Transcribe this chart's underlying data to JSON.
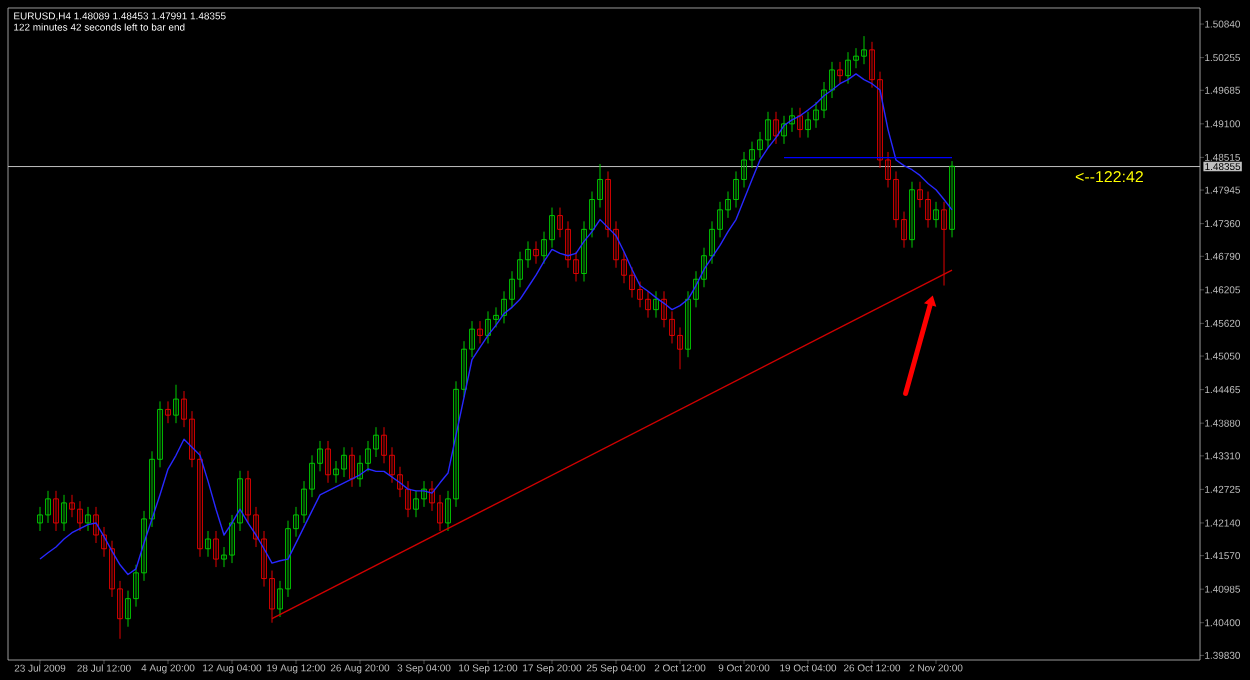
{
  "chart_data": {
    "type": "candlestick",
    "annotations": [
      "EURUSD,H4  1.48089 1.48453 1.47991 1.48355",
      "122 minutes 42 seconds left to bar end",
      {
        "text": "<--122:42",
        "y": 1.48355
      }
    ],
    "categories": [
      "23 Jul 2009",
      null,
      null,
      null,
      null,
      null,
      null,
      null,
      "28 Jul 12:00",
      null,
      null,
      null,
      null,
      null,
      null,
      null,
      "4 Aug 20:00",
      null,
      null,
      null,
      null,
      null,
      null,
      null,
      "12 Aug 04:00",
      null,
      null,
      null,
      null,
      null,
      null,
      null,
      "19 Aug 12:00",
      null,
      null,
      null,
      null,
      null,
      null,
      null,
      "26 Aug 20:00",
      null,
      null,
      null,
      null,
      null,
      null,
      null,
      "3 Sep 04:00",
      null,
      null,
      null,
      null,
      null,
      null,
      null,
      "10 Sep 12:00",
      null,
      null,
      null,
      null,
      null,
      null,
      null,
      "17 Sep 20:00",
      null,
      null,
      null,
      null,
      null,
      null,
      null,
      "25 Sep 04:00",
      null,
      null,
      null,
      null,
      null,
      null,
      null,
      "2 Oct 12:00",
      null,
      null,
      null,
      null,
      null,
      null,
      null,
      "9 Oct 20:00",
      null,
      null,
      null,
      null,
      null,
      null,
      null,
      "19 Oct 04:00",
      null,
      null,
      null,
      null,
      null,
      null,
      null,
      "26 Oct 12:00",
      null,
      null,
      null,
      null,
      null,
      null,
      null,
      "2 Nov 20:00",
      null,
      null
    ],
    "ohlc": [
      [
        1.4214,
        1.4242,
        1.42,
        1.4228
      ],
      [
        1.4228,
        1.427,
        1.4214,
        1.4256
      ],
      [
        1.4256,
        1.427,
        1.42,
        1.4214
      ],
      [
        1.4214,
        1.4263,
        1.42,
        1.4249
      ],
      [
        1.4249,
        1.4263,
        1.4224,
        1.4238
      ],
      [
        1.4238,
        1.4252,
        1.42,
        1.4214
      ],
      [
        1.4214,
        1.4242,
        1.42,
        1.4228
      ],
      [
        1.4228,
        1.4242,
        1.4179,
        1.4193
      ],
      [
        1.4193,
        1.4207,
        1.4155,
        1.4169
      ],
      [
        1.4169,
        1.4183,
        1.4085,
        1.4099
      ],
      [
        1.4099,
        1.4113,
        1.4012,
        1.4047
      ],
      [
        1.4047,
        1.4096,
        1.4033,
        1.4082
      ],
      [
        1.4082,
        1.4141,
        1.4068,
        1.4127
      ],
      [
        1.4127,
        1.4235,
        1.4113,
        1.4221
      ],
      [
        1.4221,
        1.4339,
        1.4207,
        1.4325
      ],
      [
        1.4325,
        1.4426,
        1.4311,
        1.4412
      ],
      [
        1.4412,
        1.4426,
        1.4388,
        1.4402
      ],
      [
        1.4402,
        1.4455,
        1.4388,
        1.443
      ],
      [
        1.443,
        1.4444,
        1.4381,
        1.4395
      ],
      [
        1.4395,
        1.4409,
        1.4311,
        1.4325
      ],
      [
        1.4325,
        1.4339,
        1.4155,
        1.4169
      ],
      [
        1.4169,
        1.42,
        1.4155,
        1.4186
      ],
      [
        1.4186,
        1.42,
        1.4137,
        1.4151
      ],
      [
        1.4151,
        1.4172,
        1.4137,
        1.4158
      ],
      [
        1.4158,
        1.4228,
        1.4144,
        1.4214
      ],
      [
        1.4214,
        1.4305,
        1.42,
        1.4291
      ],
      [
        1.4291,
        1.4305,
        1.4214,
        1.4228
      ],
      [
        1.4228,
        1.4242,
        1.4172,
        1.4186
      ],
      [
        1.4186,
        1.42,
        1.4103,
        1.4117
      ],
      [
        1.4117,
        1.4131,
        1.404,
        1.4064
      ],
      [
        1.4064,
        1.4113,
        1.405,
        1.4099
      ],
      [
        1.4099,
        1.4218,
        1.4085,
        1.4204
      ],
      [
        1.4204,
        1.4242,
        1.419,
        1.4228
      ],
      [
        1.4228,
        1.4287,
        1.4214,
        1.4273
      ],
      [
        1.4273,
        1.4332,
        1.4259,
        1.4318
      ],
      [
        1.4318,
        1.4357,
        1.4304,
        1.4343
      ],
      [
        1.4343,
        1.4357,
        1.4284,
        1.4298
      ],
      [
        1.4298,
        1.4322,
        1.4284,
        1.4308
      ],
      [
        1.4308,
        1.4346,
        1.4294,
        1.4332
      ],
      [
        1.4332,
        1.4346,
        1.4277,
        1.4291
      ],
      [
        1.4291,
        1.4332,
        1.4277,
        1.4318
      ],
      [
        1.4318,
        1.4357,
        1.4304,
        1.4343
      ],
      [
        1.4343,
        1.4381,
        1.4329,
        1.4367
      ],
      [
        1.4367,
        1.4381,
        1.4318,
        1.4332
      ],
      [
        1.4332,
        1.4346,
        1.4284,
        1.4298
      ],
      [
        1.4298,
        1.4312,
        1.4259,
        1.4273
      ],
      [
        1.4273,
        1.4287,
        1.4224,
        1.4238
      ],
      [
        1.4238,
        1.427,
        1.4224,
        1.4256
      ],
      [
        1.4256,
        1.4287,
        1.4242,
        1.4273
      ],
      [
        1.4273,
        1.4287,
        1.4235,
        1.4249
      ],
      [
        1.4249,
        1.4263,
        1.42,
        1.4214
      ],
      [
        1.4214,
        1.427,
        1.42,
        1.4256
      ],
      [
        1.4256,
        1.4461,
        1.4242,
        1.4447
      ],
      [
        1.4447,
        1.4531,
        1.4433,
        1.4517
      ],
      [
        1.4517,
        1.4566,
        1.4503,
        1.4552
      ],
      [
        1.4552,
        1.4566,
        1.4527,
        1.4541
      ],
      [
        1.4541,
        1.4583,
        1.4527,
        1.4569
      ],
      [
        1.4569,
        1.459,
        1.4555,
        1.4576
      ],
      [
        1.4576,
        1.4618,
        1.4562,
        1.4604
      ],
      [
        1.4604,
        1.4653,
        1.459,
        1.4639
      ],
      [
        1.4639,
        1.4687,
        1.4625,
        1.4673
      ],
      [
        1.4673,
        1.4705,
        1.4659,
        1.4691
      ],
      [
        1.4691,
        1.4705,
        1.4666,
        1.468
      ],
      [
        1.468,
        1.4722,
        1.4666,
        1.4708
      ],
      [
        1.4708,
        1.4764,
        1.4694,
        1.475
      ],
      [
        1.475,
        1.4764,
        1.4712,
        1.4726
      ],
      [
        1.4726,
        1.474,
        1.4659,
        1.4673
      ],
      [
        1.4673,
        1.4687,
        1.4635,
        1.4649
      ],
      [
        1.4649,
        1.474,
        1.4635,
        1.4726
      ],
      [
        1.4726,
        1.4792,
        1.4712,
        1.4778
      ],
      [
        1.4778,
        1.484,
        1.4764,
        1.4813
      ],
      [
        1.4813,
        1.4827,
        1.4712,
        1.4726
      ],
      [
        1.4726,
        1.474,
        1.4659,
        1.4673
      ],
      [
        1.4673,
        1.4687,
        1.4632,
        1.4646
      ],
      [
        1.4646,
        1.466,
        1.4607,
        1.4621
      ],
      [
        1.4621,
        1.4635,
        1.459,
        1.4604
      ],
      [
        1.4604,
        1.4618,
        1.4572,
        1.4586
      ],
      [
        1.4586,
        1.4618,
        1.4572,
        1.4604
      ],
      [
        1.4604,
        1.4618,
        1.4555,
        1.4569
      ],
      [
        1.4569,
        1.4583,
        1.4527,
        1.4541
      ],
      [
        1.4541,
        1.4555,
        1.4482,
        1.4517
      ],
      [
        1.4517,
        1.4618,
        1.4503,
        1.4604
      ],
      [
        1.4604,
        1.4653,
        1.459,
        1.4639
      ],
      [
        1.4639,
        1.4694,
        1.4625,
        1.468
      ],
      [
        1.468,
        1.474,
        1.4666,
        1.4726
      ],
      [
        1.4726,
        1.4774,
        1.4712,
        1.476
      ],
      [
        1.476,
        1.4792,
        1.4746,
        1.4778
      ],
      [
        1.4778,
        1.4827,
        1.4764,
        1.4813
      ],
      [
        1.4813,
        1.4861,
        1.4799,
        1.4847
      ],
      [
        1.4847,
        1.4879,
        1.4833,
        1.4865
      ],
      [
        1.4865,
        1.4896,
        1.4851,
        1.4882
      ],
      [
        1.4882,
        1.4931,
        1.4868,
        1.4917
      ],
      [
        1.4917,
        1.4931,
        1.4875,
        1.4889
      ],
      [
        1.4889,
        1.4924,
        1.4875,
        1.491
      ],
      [
        1.491,
        1.4938,
        1.4896,
        1.4924
      ],
      [
        1.4924,
        1.4938,
        1.4886,
        1.49
      ],
      [
        1.49,
        1.4931,
        1.4886,
        1.4917
      ],
      [
        1.4917,
        1.4948,
        1.4903,
        1.4934
      ],
      [
        1.4934,
        1.4983,
        1.492,
        1.4969
      ],
      [
        1.4969,
        1.5018,
        1.4955,
        1.5004
      ],
      [
        1.5004,
        1.5018,
        1.498,
        1.4994
      ],
      [
        1.4994,
        1.5035,
        1.498,
        1.5021
      ],
      [
        1.5021,
        1.5042,
        1.5007,
        1.5028
      ],
      [
        1.5028,
        1.5063,
        1.5014,
        1.5039
      ],
      [
        1.5039,
        1.5053,
        1.4973,
        1.4987
      ],
      [
        1.4987,
        1.5001,
        1.4833,
        1.4847
      ],
      [
        1.4847,
        1.4861,
        1.4799,
        1.4813
      ],
      [
        1.4813,
        1.4827,
        1.4729,
        1.4743
      ],
      [
        1.4743,
        1.4757,
        1.4694,
        1.4708
      ],
      [
        1.4708,
        1.4809,
        1.4694,
        1.4795
      ],
      [
        1.4795,
        1.4809,
        1.4764,
        1.4778
      ],
      [
        1.4778,
        1.4792,
        1.4729,
        1.4743
      ],
      [
        1.4743,
        1.4774,
        1.4729,
        1.476
      ],
      [
        1.476,
        1.4774,
        1.4628,
        1.4726
      ],
      [
        1.4726,
        1.4845,
        1.4712,
        1.4836
      ]
    ],
    "series": [
      {
        "type": "line",
        "color": "#2828ff",
        "values": [
          1.4151,
          1.4162,
          1.4172,
          1.4186,
          1.4197,
          1.4204,
          1.4211,
          1.4214,
          1.419,
          1.4165,
          1.4141,
          1.4124,
          1.4134,
          1.4179,
          1.4221,
          1.4263,
          1.4308,
          1.4332,
          1.436,
          1.4346,
          1.4332,
          1.4287,
          1.4238,
          1.4193,
          1.4214,
          1.4238,
          1.4214,
          1.4193,
          1.4169,
          1.4144,
          1.4148,
          1.4151,
          1.4179,
          1.4207,
          1.4235,
          1.4263,
          1.427,
          1.4277,
          1.4284,
          1.4291,
          1.4298,
          1.4308,
          1.4304,
          1.4304,
          1.4294,
          1.4284,
          1.4273,
          1.427,
          1.427,
          1.4266,
          1.4284,
          1.4301,
          1.4367,
          1.4433,
          1.4499,
          1.452,
          1.4541,
          1.4559,
          1.4579,
          1.459,
          1.4604,
          1.4625,
          1.4646,
          1.467,
          1.4691,
          1.4684,
          1.468,
          1.4684,
          1.4705,
          1.4722,
          1.4743,
          1.4729,
          1.4715,
          1.4687,
          1.4656,
          1.4628,
          1.4618,
          1.4607,
          1.4597,
          1.4586,
          1.4593,
          1.4604,
          1.4628,
          1.4656,
          1.4677,
          1.4698,
          1.4722,
          1.4743,
          1.4778,
          1.4813,
          1.4847,
          1.4868,
          1.4886,
          1.4907,
          1.4917,
          1.4924,
          1.4934,
          1.4945,
          1.4959,
          1.4969,
          1.498,
          1.4987,
          1.4997,
          1.4987,
          1.498,
          1.4969,
          1.49,
          1.4847,
          1.4837,
          1.483,
          1.482,
          1.4806,
          1.4795,
          1.4778,
          1.476
        ]
      },
      {
        "type": "line",
        "color": "#d00000",
        "values": [
          null,
          null,
          null,
          null,
          null,
          null,
          null,
          null,
          null,
          null,
          null,
          null,
          null,
          null,
          null,
          null,
          null,
          null,
          null,
          null,
          null,
          null,
          null,
          null,
          null,
          null,
          null,
          null,
          null,
          1.4047,
          null,
          null,
          null,
          null,
          null,
          null,
          null,
          null,
          null,
          null,
          null,
          null,
          null,
          null,
          null,
          null,
          null,
          null,
          null,
          null,
          null,
          null,
          null,
          null,
          null,
          null,
          null,
          null,
          null,
          null,
          null,
          null,
          null,
          null,
          null,
          null,
          null,
          null,
          null,
          null,
          null,
          null,
          null,
          null,
          null,
          null,
          null,
          null,
          null,
          null,
          null,
          null,
          null,
          null,
          null,
          null,
          null,
          null,
          null,
          null,
          null,
          null,
          null,
          null,
          null,
          null,
          null,
          null,
          null,
          null,
          null,
          null,
          null,
          null,
          null,
          null,
          null,
          null,
          null,
          null,
          null,
          null,
          null,
          null,
          1.4655
        ]
      },
      {
        "type": "line",
        "color": "#0000ff",
        "values": [
          null,
          null,
          null,
          null,
          null,
          null,
          null,
          null,
          null,
          null,
          null,
          null,
          null,
          null,
          null,
          null,
          null,
          null,
          null,
          null,
          null,
          null,
          null,
          null,
          null,
          null,
          null,
          null,
          null,
          null,
          null,
          null,
          null,
          null,
          null,
          null,
          null,
          null,
          null,
          null,
          null,
          null,
          null,
          null,
          null,
          null,
          null,
          null,
          null,
          null,
          null,
          null,
          null,
          null,
          null,
          null,
          null,
          null,
          null,
          null,
          null,
          null,
          null,
          null,
          null,
          null,
          null,
          null,
          null,
          null,
          null,
          null,
          null,
          null,
          null,
          null,
          null,
          null,
          null,
          null,
          null,
          null,
          null,
          null,
          null,
          null,
          null,
          null,
          null,
          null,
          null,
          null,
          null,
          1.4851,
          null,
          null,
          null,
          null,
          null,
          null,
          null,
          null,
          null,
          null,
          null,
          null,
          null,
          null,
          null,
          null,
          null,
          null,
          null,
          null,
          1.4851
        ]
      }
    ],
    "ylim": [
      1.3975,
      1.5112
    ],
    "yticks": [
      {
        "value": 1.5084,
        "label": "1.50840"
      },
      {
        "value": 1.50255,
        "label": "1.50255"
      },
      {
        "value": 1.49685,
        "label": "1.49685"
      },
      {
        "value": 1.491,
        "label": "1.49100"
      },
      {
        "value": 1.48515,
        "label": "1.48515"
      },
      {
        "value": 1.47945,
        "label": "1.47945"
      },
      {
        "value": 1.4736,
        "label": "1.47360"
      },
      {
        "value": 1.4679,
        "label": "1.46790"
      },
      {
        "value": 1.46205,
        "label": "1.46205"
      },
      {
        "value": 1.4562,
        "label": "1.45620"
      },
      {
        "value": 1.4505,
        "label": "1.45050"
      },
      {
        "value": 1.44465,
        "label": "1.44465"
      },
      {
        "value": 1.4388,
        "label": "1.43880"
      },
      {
        "value": 1.4331,
        "label": "1.43310"
      },
      {
        "value": 1.42725,
        "label": "1.42725"
      },
      {
        "value": 1.4214,
        "label": "1.42140"
      },
      {
        "value": 1.4157,
        "label": "1.41570"
      },
      {
        "value": 1.40985,
        "label": "1.40985"
      },
      {
        "value": 1.404,
        "label": "1.40400"
      },
      {
        "value": 1.3983,
        "label": "1.39830"
      }
    ],
    "ref_lines": [
      {
        "axis": "y",
        "value": 1.48355,
        "label": "1.48355",
        "color": "#c0c0c0"
      }
    ]
  }
}
